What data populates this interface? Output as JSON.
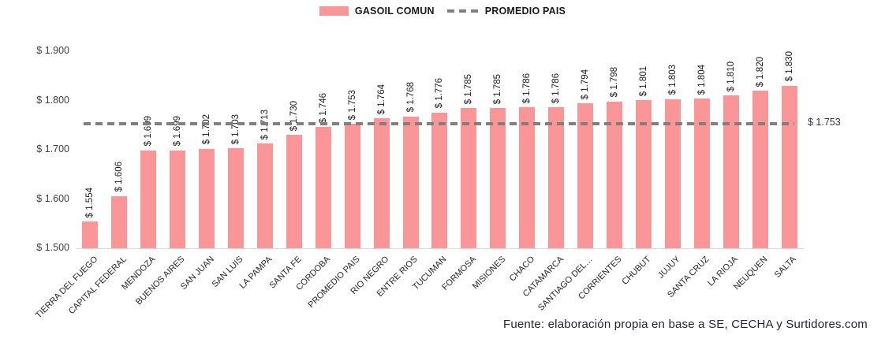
{
  "legend": {
    "series_label": "GASOIL COMUN",
    "avg_label": "PROMEDIO PAIS"
  },
  "footer": {
    "source": "Fuente: elaboración propia en base a SE, CECHA y Surtidores.com"
  },
  "colors": {
    "bar": "#FA9598",
    "avg_line": "#7F7F7F",
    "baseline": "#D9D9D9",
    "axis_text": "#3F3F3F",
    "value_text": "#1A1A1A",
    "category_text": "#262626",
    "footer_text": "#23233A"
  },
  "chart_data": {
    "type": "bar",
    "title": "",
    "legend_position": "top",
    "grid": false,
    "categories": [
      "TIERRA DEL FUEGO",
      "CAPITAL FEDERAL",
      "MENDOZA",
      "BUENOS AIRES",
      "SAN JUAN",
      "SAN LUIS",
      "LA PAMPA",
      "SANTA FE",
      "CORDOBA",
      "PROMEDIO PAIS",
      "RIO NEGRO",
      "ENTRE RIOS",
      "TUCUMAN",
      "FORMOSA",
      "MISIONES",
      "CHACO",
      "CATAMARCA",
      "SANTIAGO DEL…",
      "CORRIENTES",
      "CHUBUT",
      "JUJUY",
      "SANTA CRUZ",
      "LA RIOJA",
      "NEUQUEN",
      "SALTA"
    ],
    "series": [
      {
        "name": "GASOIL COMUN",
        "values": [
          1554,
          1606,
          1699,
          1699,
          1702,
          1703,
          1713,
          1730,
          1746,
          1753,
          1764,
          1768,
          1776,
          1785,
          1785,
          1786,
          1786,
          1794,
          1798,
          1801,
          1803,
          1804,
          1810,
          1820,
          1830
        ]
      }
    ],
    "value_labels": [
      "$ 1.554",
      "$ 1.606",
      "$ 1.699",
      "$ 1.699",
      "$ 1.702",
      "$ 1.703",
      "$ 1.713",
      "$ 1.730",
      "$ 1.746",
      "$ 1.753",
      "$ 1.764",
      "$ 1.768",
      "$ 1.776",
      "$ 1.785",
      "$ 1.785",
      "$ 1.786",
      "$ 1.786",
      "$ 1.794",
      "$ 1.798",
      "$ 1.801",
      "$ 1.803",
      "$ 1.804",
      "$ 1.810",
      "$ 1.820",
      "$ 1.830"
    ],
    "avg_line": {
      "name": "PROMEDIO PAIS",
      "value": 1753,
      "label": "$ 1.753"
    },
    "ylim": [
      1500,
      1900
    ],
    "yticks": [
      {
        "value": 1500,
        "label": "$ 1.500"
      },
      {
        "value": 1600,
        "label": "$ 1.600"
      },
      {
        "value": 1700,
        "label": "$ 1.700"
      },
      {
        "value": 1800,
        "label": "$ 1.800"
      },
      {
        "value": 1900,
        "label": "$ 1.900"
      }
    ]
  }
}
